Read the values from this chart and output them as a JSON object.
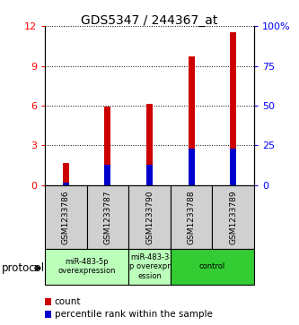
{
  "title": "GDS5347 / 244367_at",
  "samples": [
    "GSM1233786",
    "GSM1233787",
    "GSM1233790",
    "GSM1233788",
    "GSM1233789"
  ],
  "count_values": [
    1.7,
    5.9,
    6.1,
    9.7,
    11.5
  ],
  "percentile_values": [
    0.18,
    1.55,
    1.55,
    2.75,
    2.75
  ],
  "ylim_left": [
    0,
    12
  ],
  "ylim_right": [
    0,
    100
  ],
  "yticks_left": [
    0,
    3,
    6,
    9,
    12
  ],
  "yticks_right": [
    0,
    25,
    50,
    75,
    100
  ],
  "bar_color": "#cc0000",
  "percentile_color": "#0000cc",
  "bg_color": "#ffffff",
  "groups": [
    {
      "start": 0,
      "end": 1,
      "label": "miR-483-5p\noverexpression",
      "color": "#bbffbb"
    },
    {
      "start": 2,
      "end": 2,
      "label": "miR-483-3\np overexpr\nession",
      "color": "#bbffbb"
    },
    {
      "start": 3,
      "end": 4,
      "label": "control",
      "color": "#33cc33"
    }
  ],
  "protocol_label": "protocol",
  "legend_count_label": "count",
  "legend_percentile_label": "percentile rank within the sample",
  "bar_width": 0.15,
  "sample_box_color": "#d0d0d0"
}
